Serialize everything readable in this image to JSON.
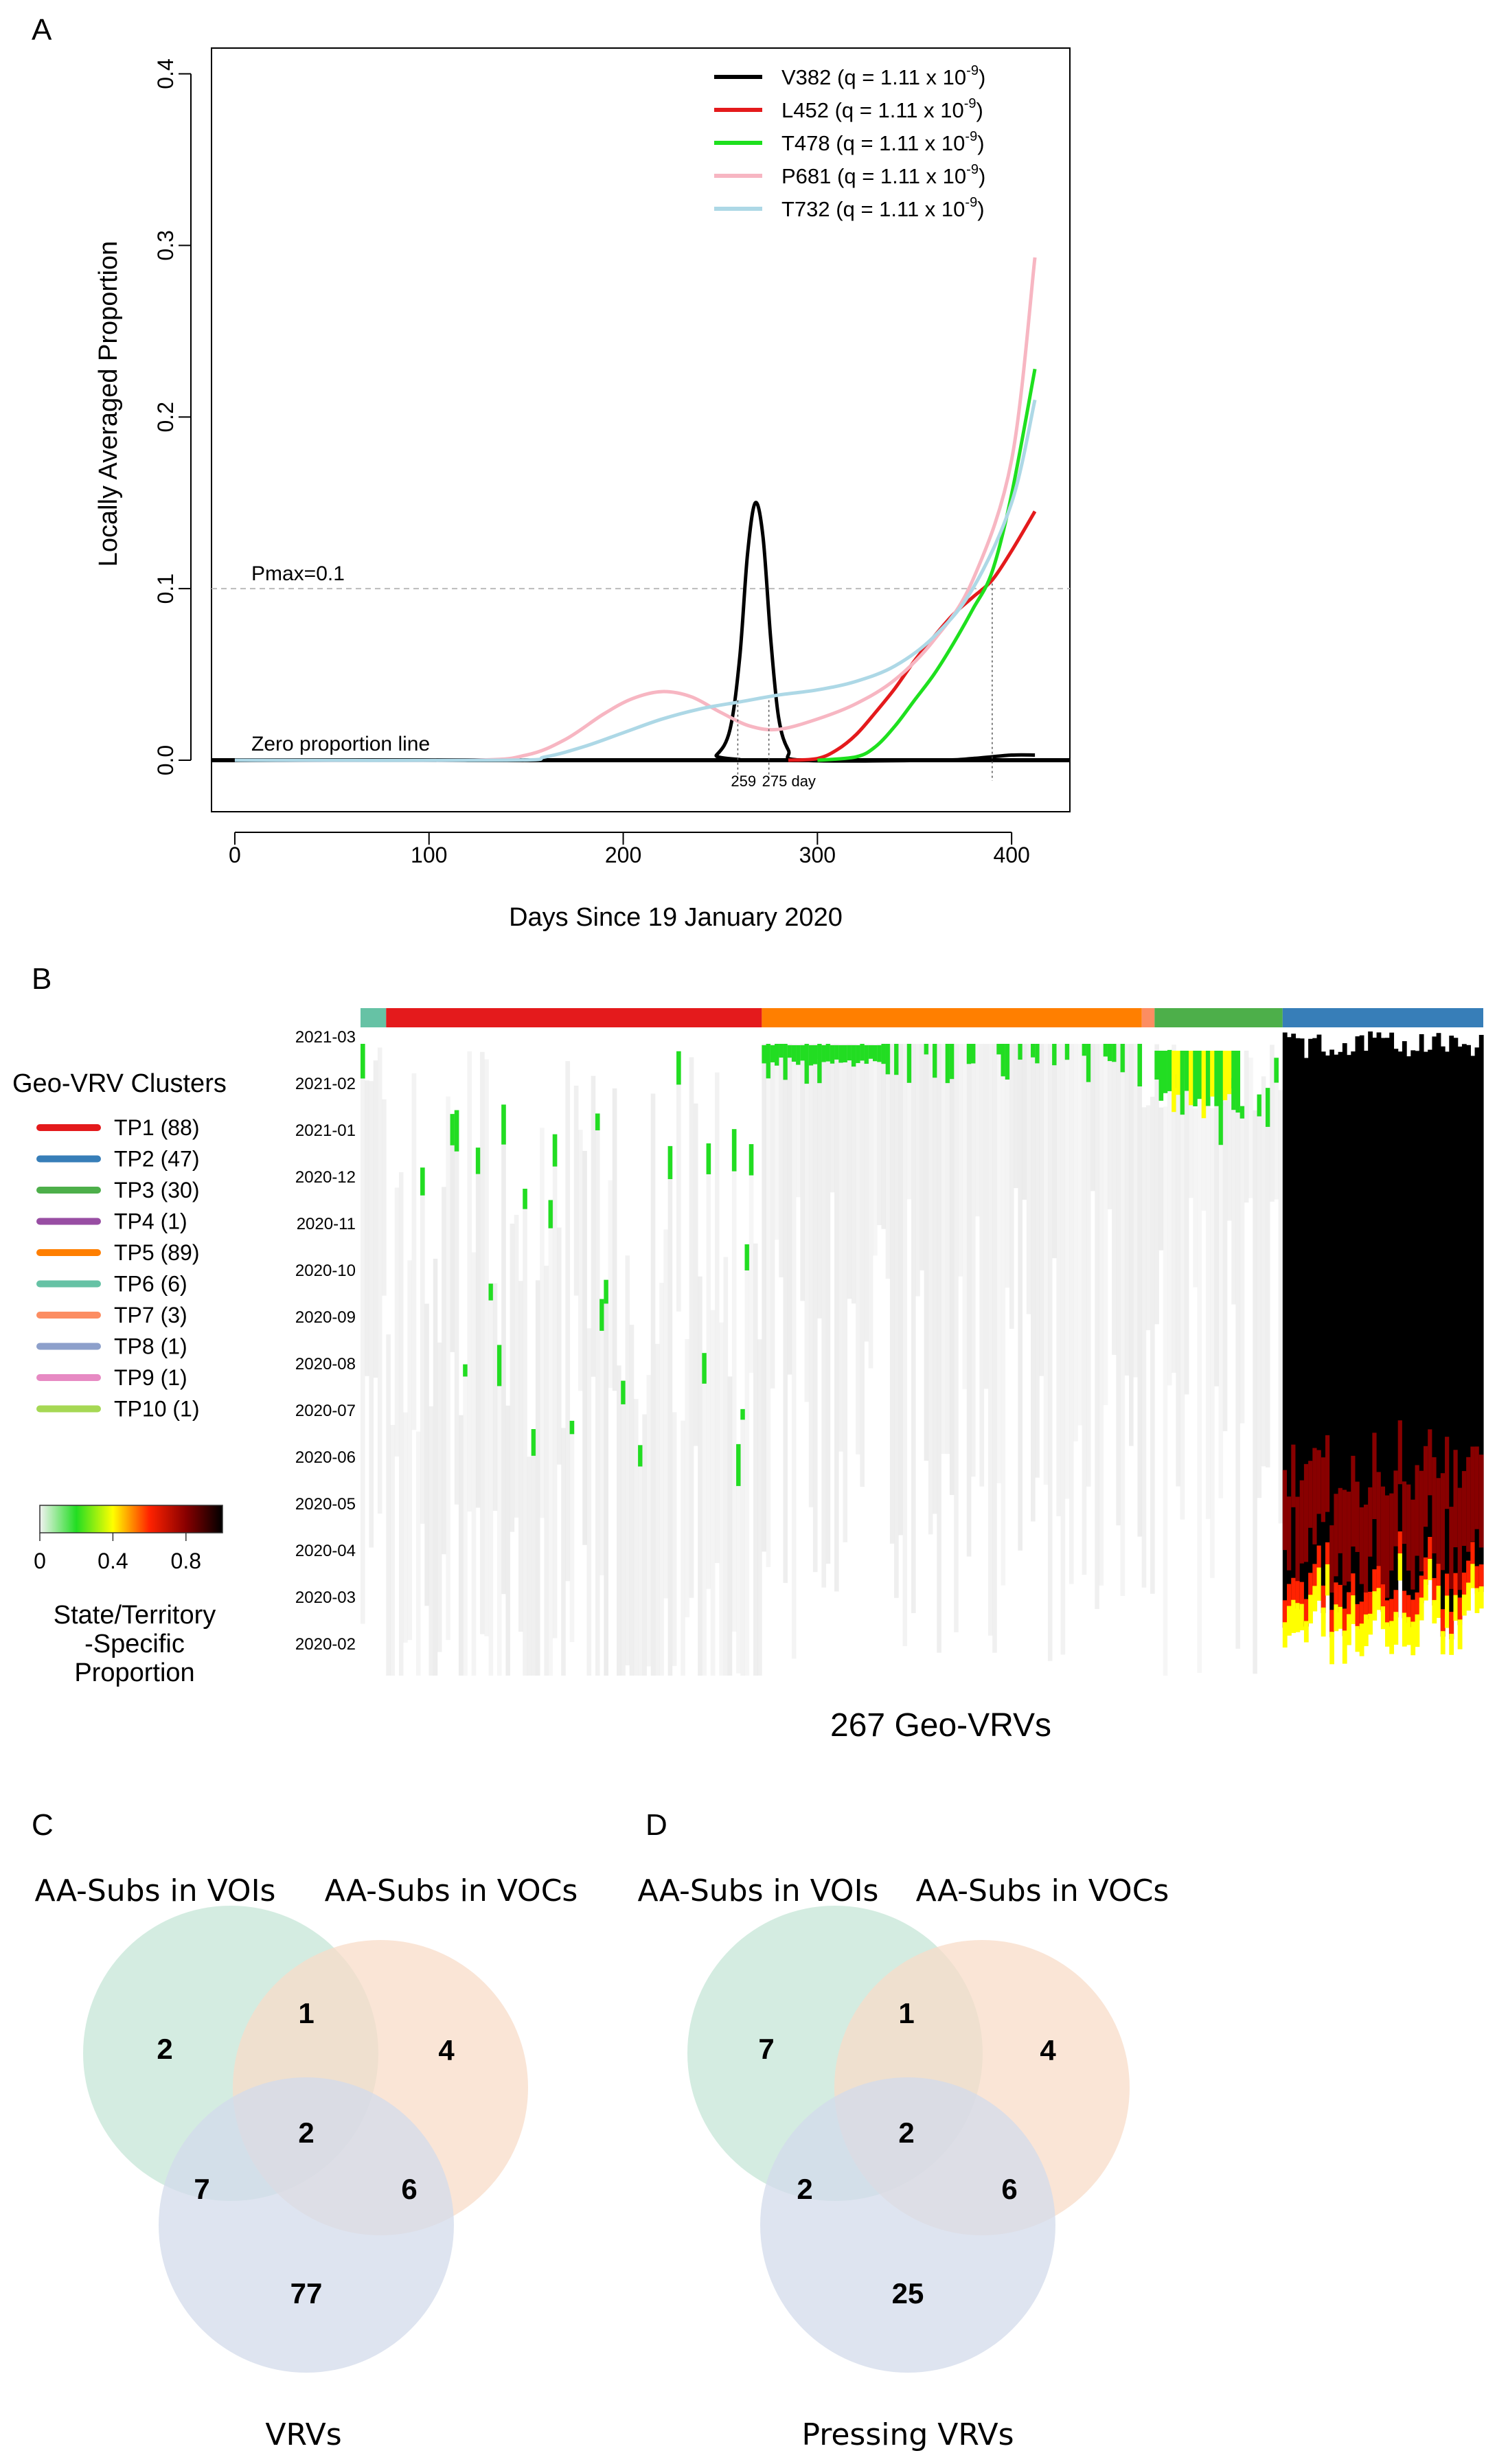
{
  "panel_labels": {
    "a": "A",
    "b": "B",
    "c": "C",
    "d": "D"
  },
  "chart_data": [
    {
      "type": "line",
      "title": "",
      "xlabel": "Days Since 19 January 2020",
      "ylabel": "Locally Averaged Proportion",
      "xlim": [
        -12,
        430
      ],
      "ylim": [
        -0.03,
        0.415
      ],
      "x_ticks": [
        0,
        100,
        200,
        300,
        400
      ],
      "x_tick_labels": [
        "0",
        "100",
        "200",
        "300",
        "400"
      ],
      "y_ticks": [
        0.0,
        0.1,
        0.2,
        0.3,
        0.4
      ],
      "y_tick_labels": [
        "0.0",
        "0.1",
        "0.2",
        "0.3",
        "0.4"
      ],
      "legend_position": "top-right",
      "pmax": {
        "value": 0.1,
        "label": "Pmax=0.1"
      },
      "zero_line": {
        "value": 0.0,
        "label": "Zero proportion line"
      },
      "markers": [
        {
          "day": 259,
          "label": "259"
        },
        {
          "day": 275,
          "label": "275 day"
        },
        {
          "day": 390,
          "label": ""
        }
      ],
      "series": [
        {
          "name": "V382",
          "legend": "V382 (q = 1.11 x 10",
          "sup": "-9",
          "tail": ")",
          "color": "#000000",
          "points": [
            [
              0,
              0
            ],
            [
              240,
              0
            ],
            [
              248,
              0.003
            ],
            [
              255,
              0.018
            ],
            [
              260,
              0.06
            ],
            [
              264,
              0.12
            ],
            [
              268,
              0.15
            ],
            [
              272,
              0.13
            ],
            [
              276,
              0.07
            ],
            [
              280,
              0.025
            ],
            [
              285,
              0.006
            ],
            [
              292,
              0
            ],
            [
              360,
              0
            ],
            [
              380,
              0.001
            ],
            [
              400,
              0.003
            ],
            [
              412,
              0.003
            ]
          ]
        },
        {
          "name": "L452",
          "legend": "L452 (q = 1.11 x 10",
          "sup": "-9",
          "tail": ")",
          "color": "#e41a1c",
          "points": [
            [
              285,
              0
            ],
            [
              300,
              0.001
            ],
            [
              310,
              0.006
            ],
            [
              320,
              0.015
            ],
            [
              330,
              0.028
            ],
            [
              340,
              0.042
            ],
            [
              350,
              0.058
            ],
            [
              360,
              0.072
            ],
            [
              370,
              0.085
            ],
            [
              380,
              0.095
            ],
            [
              390,
              0.105
            ],
            [
              400,
              0.122
            ],
            [
              412,
              0.145
            ]
          ]
        },
        {
          "name": "T478",
          "legend": "T478 (q = 1.11 x 10",
          "sup": "-9",
          "tail": ")",
          "color": "#1ee01e",
          "points": [
            [
              300,
              0
            ],
            [
              320,
              0.002
            ],
            [
              330,
              0.008
            ],
            [
              340,
              0.02
            ],
            [
              350,
              0.035
            ],
            [
              360,
              0.05
            ],
            [
              370,
              0.068
            ],
            [
              380,
              0.088
            ],
            [
              390,
              0.11
            ],
            [
              400,
              0.155
            ],
            [
              412,
              0.228
            ]
          ]
        },
        {
          "name": "P681",
          "legend": "P681 (q = 1.11 x 10",
          "sup": "-9",
          "tail": ")",
          "color": "#f7b6c2",
          "points": [
            [
              0,
              0
            ],
            [
              120,
              0
            ],
            [
              150,
              0.003
            ],
            [
              170,
              0.012
            ],
            [
              190,
              0.027
            ],
            [
              205,
              0.036
            ],
            [
              220,
              0.04
            ],
            [
              235,
              0.037
            ],
            [
              250,
              0.028
            ],
            [
              265,
              0.02
            ],
            [
              280,
              0.018
            ],
            [
              300,
              0.024
            ],
            [
              320,
              0.033
            ],
            [
              340,
              0.047
            ],
            [
              360,
              0.07
            ],
            [
              380,
              0.105
            ],
            [
              400,
              0.175
            ],
            [
              412,
              0.293
            ]
          ]
        },
        {
          "name": "T732",
          "legend": "T732 (q = 1.11 x 10",
          "sup": "-9",
          "tail": ")",
          "color": "#add8e6",
          "points": [
            [
              0,
              0
            ],
            [
              140,
              0
            ],
            [
              160,
              0.002
            ],
            [
              180,
              0.008
            ],
            [
              200,
              0.016
            ],
            [
              220,
              0.024
            ],
            [
              240,
              0.03
            ],
            [
              260,
              0.034
            ],
            [
              280,
              0.038
            ],
            [
              300,
              0.041
            ],
            [
              320,
              0.046
            ],
            [
              340,
              0.055
            ],
            [
              360,
              0.072
            ],
            [
              380,
              0.1
            ],
            [
              400,
              0.15
            ],
            [
              412,
              0.21
            ]
          ]
        }
      ]
    },
    {
      "type": "heatmap",
      "title": "",
      "xlabel": "267 Geo-VRVs",
      "ylabel": "",
      "y_tick_labels": [
        "2021-03",
        "2021-02",
        "2021-01",
        "2020-12",
        "2020-11",
        "2020-10",
        "2020-09",
        "2020-08",
        "2020-07",
        "2020-06",
        "2020-05",
        "2020-04",
        "2020-03",
        "2020-02"
      ],
      "legend_title": "Geo-VRV Clusters",
      "clusters": [
        {
          "label": "TP1 (88)",
          "color": "#e41a1c",
          "n": 88
        },
        {
          "label": "TP2 (47)",
          "color": "#377eb8",
          "n": 47
        },
        {
          "label": "TP3 (30)",
          "color": "#4daf4a",
          "n": 30
        },
        {
          "label": "TP4 (1)",
          "color": "#984ea3",
          "n": 1
        },
        {
          "label": "TP5 (89)",
          "color": "#ff7f00",
          "n": 89
        },
        {
          "label": "TP6 (6)",
          "color": "#66c2a5",
          "n": 6
        },
        {
          "label": "TP7 (3)",
          "color": "#fc8d62",
          "n": 3
        },
        {
          "label": "TP8 (1)",
          "color": "#8da0cb",
          "n": 1
        },
        {
          "label": "TP9 (1)",
          "color": "#e78ac3",
          "n": 1
        },
        {
          "label": "TP10 (1)",
          "color": "#a6d854",
          "n": 1
        }
      ],
      "colorbar": {
        "ticks": [
          "0",
          "0.4",
          "0.8"
        ],
        "title_lines": [
          "State/Territory",
          "-Specific",
          "Proportion"
        ],
        "stops": [
          "#f2f2f2",
          "#22dd22",
          "#ffff00",
          "#ff2200",
          "#880000",
          "#000000"
        ]
      }
    }
  ],
  "venn_c": {
    "label_a": "AA-Subs in VOIs",
    "label_b": "AA-Subs in VOCs",
    "label_c": "VRVs",
    "only_a": "2",
    "ab": "1",
    "only_b": "4",
    "abc": "2",
    "ac": "7",
    "bc": "6",
    "only_c": "77",
    "colors": {
      "a": "#cde9dc",
      "b": "#f8dcc8",
      "c": "#d3dbeb"
    }
  },
  "venn_d": {
    "label_a": "AA-Subs in VOIs",
    "label_b": "AA-Subs in VOCs",
    "label_c": "Pressing VRVs",
    "only_a": "7",
    "ab": "1",
    "only_b": "4",
    "abc": "2",
    "ac": "2",
    "bc": "6",
    "only_c": "25",
    "colors": {
      "a": "#cde9dc",
      "b": "#f8dcc8",
      "c": "#d3dbeb"
    }
  }
}
